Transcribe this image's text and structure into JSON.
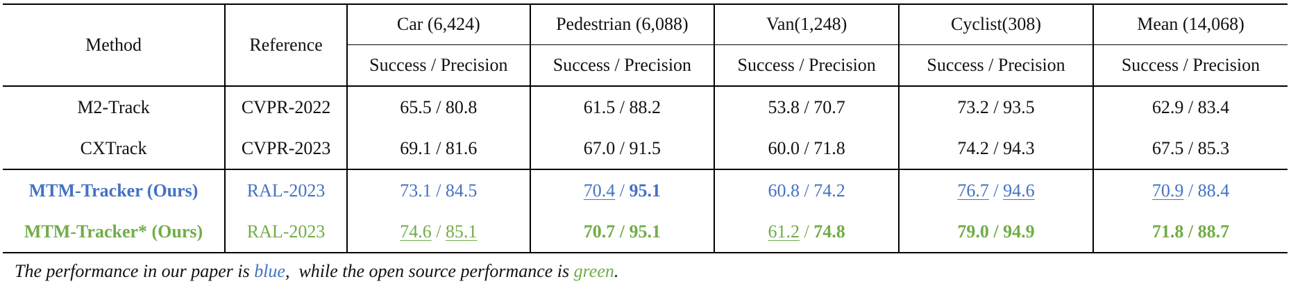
{
  "header": {
    "method": "Method",
    "reference": "Reference",
    "columns": [
      "Car (6,424)",
      "Pedestrian (6,088)",
      "Van(1,248)",
      "Cyclist(308)",
      "Mean (14,068)"
    ],
    "metric": "Success / Precision"
  },
  "separator": " / ",
  "rows": [
    {
      "method": "M2-Track",
      "reference": "CVPR-2022",
      "cells": [
        {
          "s": "65.5",
          "p": "80.8"
        },
        {
          "s": "61.5",
          "p": "88.2"
        },
        {
          "s": "53.8",
          "p": "70.7"
        },
        {
          "s": "73.2",
          "p": "93.5"
        },
        {
          "s": "62.9",
          "p": "83.4"
        }
      ]
    },
    {
      "method": "CXTrack",
      "reference": "CVPR-2023",
      "cells": [
        {
          "s": "69.1",
          "p": "81.6"
        },
        {
          "s": "67.0",
          "p": "91.5"
        },
        {
          "s": "60.0",
          "p": "71.8"
        },
        {
          "s": "74.2",
          "p": "94.3"
        },
        {
          "s": "67.5",
          "p": "85.3"
        }
      ]
    },
    {
      "method": "MTM-Tracker (Ours)",
      "reference": "RAL-2023",
      "color": "#4472c4",
      "cells": [
        {
          "s": "73.1",
          "p": "84.5"
        },
        {
          "s": "70.4",
          "p": "95.1"
        },
        {
          "s": "60.8",
          "p": "74.2"
        },
        {
          "s": "76.7",
          "p": "94.6"
        },
        {
          "s": "70.9",
          "p": "88.4"
        }
      ]
    },
    {
      "method": "MTM-Tracker* (Ours)",
      "reference": "RAL-2023",
      "color": "#70ad47",
      "cells": [
        {
          "s": "74.6",
          "p": "85.1"
        },
        {
          "s": "70.7",
          "p": "95.1"
        },
        {
          "s": "61.2",
          "p": "74.8"
        },
        {
          "s": "79.0",
          "p": "94.9"
        },
        {
          "s": "71.8",
          "p": "88.7"
        }
      ]
    }
  ],
  "caption": {
    "part1": "The performance in our paper is ",
    "blue_word": "blue",
    "part2": ",  while the open source performance is ",
    "green_word": "green",
    "part3": "."
  },
  "colors": {
    "blue": "#4472c4",
    "green": "#70ad47",
    "text": "#111111"
  }
}
